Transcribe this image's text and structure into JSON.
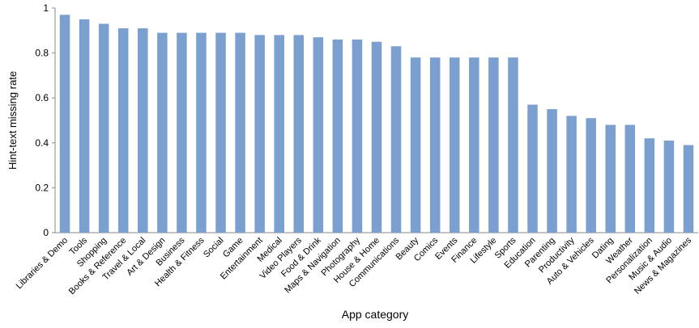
{
  "chart_data": {
    "type": "bar",
    "x_label": "App category",
    "y_label": "Hint-text missing rate",
    "categories": [
      "Libraries & Demo",
      "Tools",
      "Shopping",
      "Books & Reference",
      "Travel & Local",
      "Art & Design",
      "Business",
      "Health & Fitness",
      "Social",
      "Game",
      "Entertainment",
      "Medical",
      "Video Players",
      "Food & Drink",
      "Maps & Navigation",
      "Photography",
      "House & Home",
      "Communications",
      "Beauty",
      "Comics",
      "Events",
      "Finance",
      "Lifestyle",
      "Sports",
      "Education",
      "Parenting",
      "Productivity",
      "Auto & Vehicles",
      "Dating",
      "Weather",
      "Personalization",
      "Music & Audio",
      "News & Magazines"
    ],
    "values": [
      0.97,
      0.95,
      0.93,
      0.91,
      0.91,
      0.89,
      0.89,
      0.89,
      0.89,
      0.89,
      0.88,
      0.88,
      0.88,
      0.87,
      0.86,
      0.86,
      0.85,
      0.83,
      0.78,
      0.78,
      0.78,
      0.78,
      0.78,
      0.78,
      0.57,
      0.55,
      0.52,
      0.51,
      0.48,
      0.48,
      0.42,
      0.41,
      0.39
    ],
    "color": "#7b9fcf",
    "ylim": [
      0,
      1
    ],
    "yticks": [
      0,
      0.2,
      0.4,
      0.6,
      0.8,
      1
    ],
    "grid": false
  }
}
